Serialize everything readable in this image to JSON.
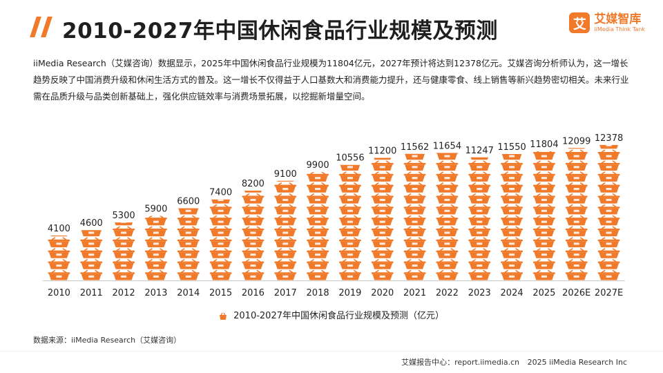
{
  "header": {
    "title": "2010-2027年中国休闲食品行业规模及预测",
    "logo_mark": "艾",
    "logo_cn": "艾媒智库",
    "logo_en": "iiMedia Think Tank"
  },
  "intro": "iiMedia Research（艾媒咨询）数据显示，2025年中国休闲食品行业规模为11804亿元，2027年预计将达到12378亿元。艾媒咨询分析师认为，这一增长趋势反映了中国消费升级和休闲生活方式的普及。这一增长不仅得益于人口基数大和消费能力提升，还与健康零食、线上销售等新兴趋势密切相关。未来行业需在品质升级与品类创新基础上，强化供应链效率与消费场景拓展，以挖掘新增量空间。",
  "chart_data": {
    "type": "bar",
    "title": "2010-2027年中国休闲食品行业规模及预测（亿元）",
    "categories": [
      "2010",
      "2011",
      "2012",
      "2013",
      "2014",
      "2015",
      "2016",
      "2017",
      "2018",
      "2019",
      "2020",
      "2021",
      "2022",
      "2023",
      "2024",
      "2025",
      "2026E",
      "2027E"
    ],
    "series": [
      {
        "name": "2010-2027年中国休闲食品行业规模及预测（亿元）",
        "values": [
          4100,
          4600,
          5300,
          5900,
          6600,
          7400,
          8200,
          9100,
          9900,
          10556,
          11200,
          11562,
          11654,
          11247,
          11550,
          11804,
          12099,
          12378
        ]
      }
    ],
    "ylim": [
      0,
      13000
    ],
    "unit_value": 1000,
    "xlabel": "",
    "ylabel": "",
    "legend_position": "bottom-center",
    "grid": false,
    "colors": {
      "bar": "#f07a2a",
      "text": "#222222",
      "axis": "#cccccc"
    }
  },
  "legend": {
    "label": "2010-2027年中国休闲食品行业规模及预测（亿元）"
  },
  "source": "数据来源：iiMedia Research（艾媒咨询）",
  "footer": {
    "report": "艾媒报告中心：report.iimedia.cn",
    "copyright": "2025 iiMedia Research Inc"
  }
}
